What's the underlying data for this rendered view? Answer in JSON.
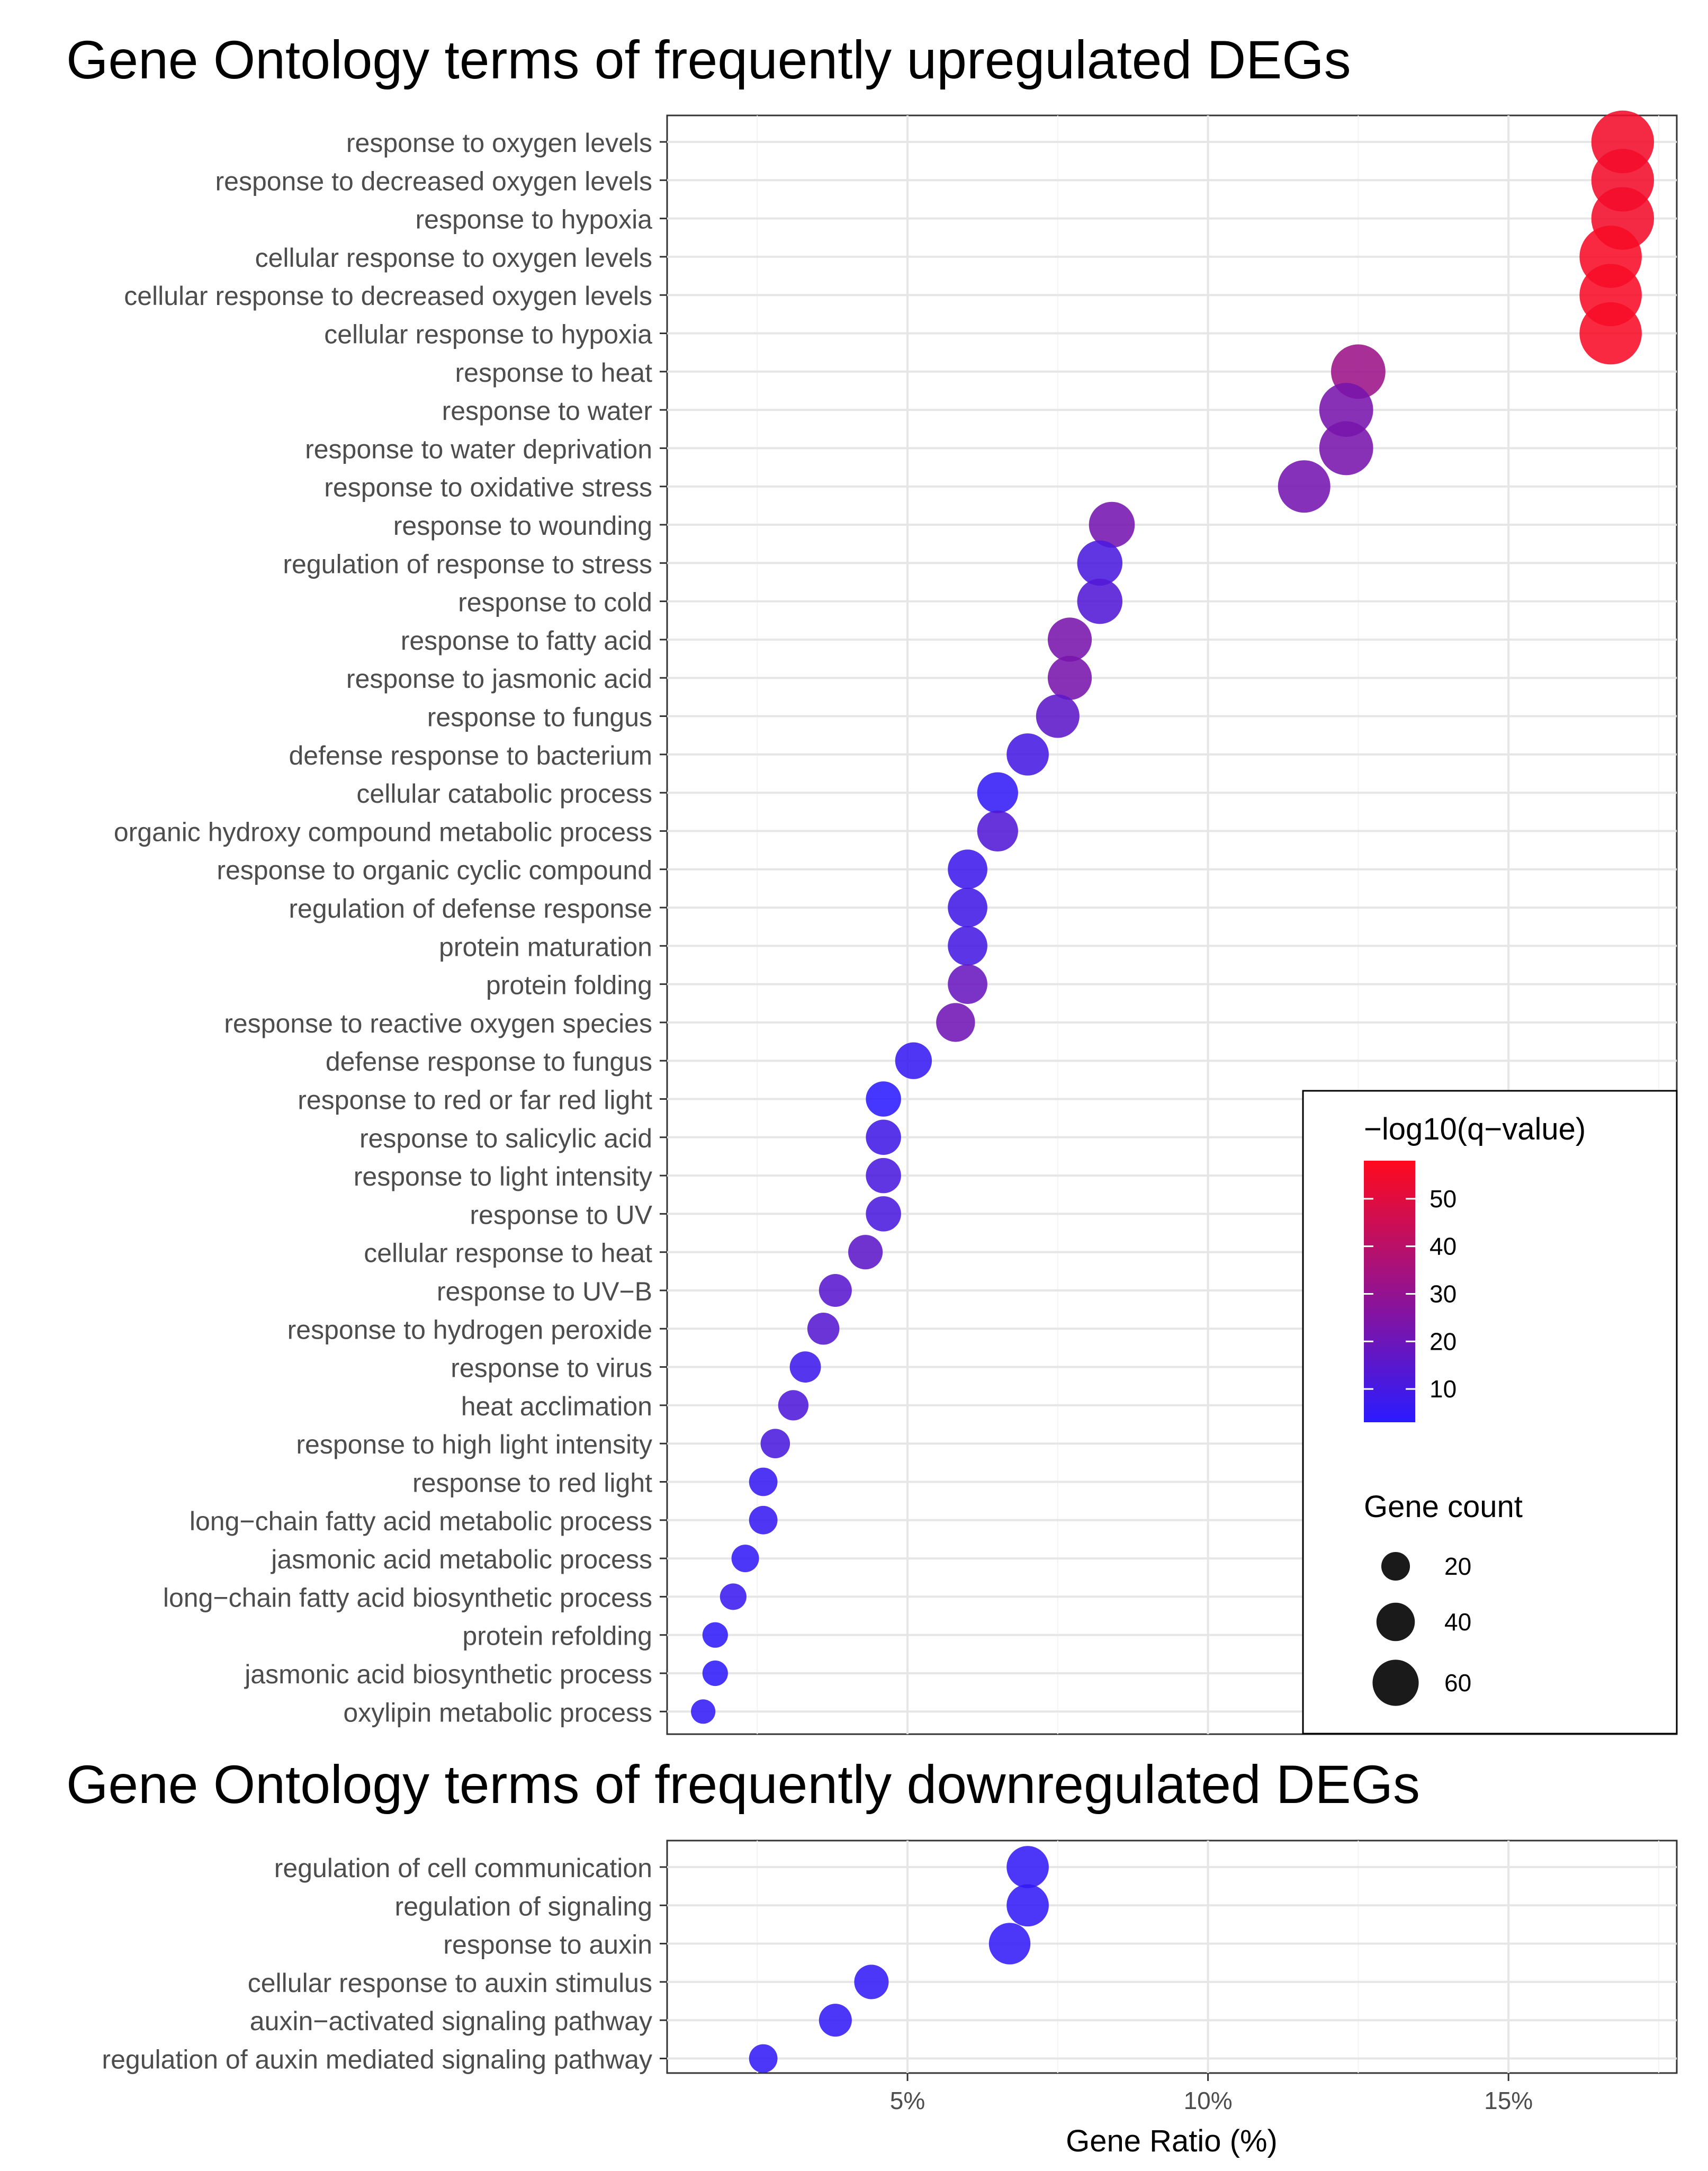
{
  "chart_data": [
    {
      "type": "scatter",
      "title": "Gene Ontology terms of frequently upregulated DEGs",
      "xlabel": "Gene Ratio (%)",
      "ylabel": "",
      "xlim": [
        1.0,
        17.8
      ],
      "xticks": [
        5,
        10,
        15
      ],
      "xtick_labels": [
        "5%",
        "10%",
        "15%"
      ],
      "grid": true,
      "points": [
        {
          "term": "response to oxygen levels",
          "ratio": 16.9,
          "q": 55,
          "count": 68
        },
        {
          "term": "response to decreased oxygen levels",
          "ratio": 16.9,
          "q": 55,
          "count": 68
        },
        {
          "term": "response to hypoxia",
          "ratio": 16.9,
          "q": 55,
          "count": 68
        },
        {
          "term": "cellular response to oxygen levels",
          "ratio": 16.7,
          "q": 56,
          "count": 67
        },
        {
          "term": "cellular response to decreased oxygen levels",
          "ratio": 16.7,
          "q": 56,
          "count": 67
        },
        {
          "term": "cellular response to hypoxia",
          "ratio": 16.7,
          "q": 56,
          "count": 67
        },
        {
          "term": "response to heat",
          "ratio": 12.5,
          "q": 32,
          "count": 50
        },
        {
          "term": "response to water",
          "ratio": 12.3,
          "q": 23,
          "count": 49
        },
        {
          "term": "response to water deprivation",
          "ratio": 12.3,
          "q": 23,
          "count": 49
        },
        {
          "term": "response to oxidative stress",
          "ratio": 11.6,
          "q": 22,
          "count": 46
        },
        {
          "term": "response to wounding",
          "ratio": 8.4,
          "q": 22,
          "count": 34
        },
        {
          "term": "regulation of response to stress",
          "ratio": 8.2,
          "q": 11,
          "count": 33
        },
        {
          "term": "response to cold",
          "ratio": 8.2,
          "q": 13,
          "count": 33
        },
        {
          "term": "response to fatty acid",
          "ratio": 7.7,
          "q": 23,
          "count": 31
        },
        {
          "term": "response to jasmonic acid",
          "ratio": 7.7,
          "q": 23,
          "count": 31
        },
        {
          "term": "response to fungus",
          "ratio": 7.5,
          "q": 16,
          "count": 30
        },
        {
          "term": "defense response to bacterium",
          "ratio": 7.0,
          "q": 10,
          "count": 28
        },
        {
          "term": "cellular catabolic process",
          "ratio": 6.5,
          "q": 5,
          "count": 26
        },
        {
          "term": "organic hydroxy compound metabolic process",
          "ratio": 6.5,
          "q": 13,
          "count": 26
        },
        {
          "term": "response to organic cyclic compound",
          "ratio": 6.0,
          "q": 8,
          "count": 24
        },
        {
          "term": "regulation of defense response",
          "ratio": 6.0,
          "q": 9,
          "count": 24
        },
        {
          "term": "protein maturation",
          "ratio": 6.0,
          "q": 10,
          "count": 24
        },
        {
          "term": "protein folding",
          "ratio": 6.0,
          "q": 19,
          "count": 24
        },
        {
          "term": "response to reactive oxygen species",
          "ratio": 5.8,
          "q": 21,
          "count": 23
        },
        {
          "term": "defense response to fungus",
          "ratio": 5.1,
          "q": 6,
          "count": 20
        },
        {
          "term": "response to red or far red light",
          "ratio": 4.6,
          "q": 3,
          "count": 18
        },
        {
          "term": "response to salicylic acid",
          "ratio": 4.6,
          "q": 9,
          "count": 18
        },
        {
          "term": "response to light intensity",
          "ratio": 4.6,
          "q": 11,
          "count": 18
        },
        {
          "term": "response to UV",
          "ratio": 4.6,
          "q": 11,
          "count": 18
        },
        {
          "term": "cellular response to heat",
          "ratio": 4.3,
          "q": 16,
          "count": 17
        },
        {
          "term": "response to UV−B",
          "ratio": 3.8,
          "q": 15,
          "count": 15
        },
        {
          "term": "response to hydrogen peroxide",
          "ratio": 3.6,
          "q": 14,
          "count": 14
        },
        {
          "term": "response to virus",
          "ratio": 3.3,
          "q": 8,
          "count": 13
        },
        {
          "term": "heat acclimation",
          "ratio": 3.1,
          "q": 12,
          "count": 12
        },
        {
          "term": "response to high light intensity",
          "ratio": 2.8,
          "q": 11,
          "count": 11
        },
        {
          "term": "response to red light",
          "ratio": 2.6,
          "q": 6,
          "count": 10
        },
        {
          "term": "long−chain fatty acid metabolic process",
          "ratio": 2.6,
          "q": 6,
          "count": 10
        },
        {
          "term": "jasmonic acid metabolic process",
          "ratio": 2.3,
          "q": 5,
          "count": 9
        },
        {
          "term": "long−chain fatty acid biosynthetic process",
          "ratio": 2.1,
          "q": 7,
          "count": 8
        },
        {
          "term": "protein refolding",
          "ratio": 1.8,
          "q": 4,
          "count": 7
        },
        {
          "term": "jasmonic acid biosynthetic process",
          "ratio": 1.8,
          "q": 4,
          "count": 7
        },
        {
          "term": "oxylipin metabolic process",
          "ratio": 1.6,
          "q": 5,
          "count": 6
        }
      ]
    },
    {
      "type": "scatter",
      "title": "Gene Ontology terms of frequently downregulated DEGs",
      "xlabel": "Gene Ratio (%)",
      "ylabel": "",
      "xlim": [
        1.0,
        17.8
      ],
      "xticks": [
        5,
        10,
        15
      ],
      "xtick_labels": [
        "5%",
        "10%",
        "15%"
      ],
      "grid": true,
      "points": [
        {
          "term": "regulation of cell communication",
          "ratio": 7.0,
          "q": 5,
          "count": 28
        },
        {
          "term": "regulation of signaling",
          "ratio": 7.0,
          "q": 5,
          "count": 28
        },
        {
          "term": "response to auxin",
          "ratio": 6.7,
          "q": 5,
          "count": 27
        },
        {
          "term": "cellular response to auxin stimulus",
          "ratio": 4.4,
          "q": 5,
          "count": 17
        },
        {
          "term": "auxin−activated signaling pathway",
          "ratio": 3.8,
          "q": 5,
          "count": 15
        },
        {
          "term": "regulation of auxin mediated signaling pathway",
          "ratio": 2.6,
          "q": 5,
          "count": 10
        }
      ]
    }
  ],
  "legend": {
    "color_title": "−log10(q−value)",
    "color_low": "#2b1bff",
    "color_high": "#ff0a1e",
    "color_range": [
      3,
      58
    ],
    "color_ticks": [
      10,
      20,
      30,
      40,
      50
    ],
    "color_tick_labels": [
      "10",
      "20",
      "30",
      "40",
      "50"
    ],
    "size_title": "Gene count",
    "size_values": [
      20,
      40,
      60
    ],
    "size_labels": [
      "20",
      "40",
      "60"
    ],
    "size_range": [
      5,
      70
    ],
    "point_color": "#1a1a1a"
  },
  "colors": {
    "grid": "#ebebeb",
    "panel_border": "#333333",
    "text": "#4d4d4d"
  }
}
